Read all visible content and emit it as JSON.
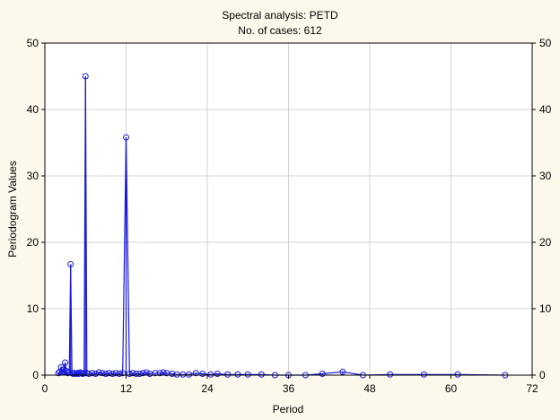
{
  "chart_data": {
    "type": "line",
    "title": "Spectral analysis: PETD",
    "subtitle": "No. of cases: 612",
    "xlabel": "Period",
    "ylabel": "Periodogram Values",
    "xlim": [
      0,
      72
    ],
    "ylim": [
      0,
      50
    ],
    "x_ticks": [
      0,
      12,
      24,
      36,
      48,
      60,
      72
    ],
    "y_ticks": [
      0,
      10,
      20,
      30,
      40,
      50
    ],
    "y_ticks_right": [
      0,
      10,
      20,
      30,
      40,
      50
    ],
    "grid": true,
    "colors": {
      "series": "#1a1adb",
      "background": "#fdf8ec",
      "plot": "#ffffff",
      "grid": "#d4d4d4"
    },
    "series": [
      {
        "x": [
          2.0,
          2.2,
          2.4,
          2.6,
          2.8,
          3.0,
          3.2,
          3.4,
          3.6,
          3.8,
          4.0,
          4.2,
          4.4,
          4.6,
          4.8,
          5.0,
          5.2,
          5.4,
          5.6,
          5.8,
          6.0,
          6.2,
          6.5,
          7.0,
          7.5,
          8.0,
          8.5,
          9.0,
          9.5,
          10.0,
          10.5,
          11.0,
          11.5,
          12.0,
          12.5,
          13.0,
          13.5,
          14.0,
          14.5,
          15.0,
          15.5,
          16.3,
          17.0,
          17.5,
          18.0,
          18.8,
          19.5,
          20.4,
          21.3,
          22.3,
          23.3,
          24.5,
          25.5,
          27.0,
          28.5,
          30.0,
          32.0,
          34.0,
          36.0,
          38.5,
          41.0,
          44.0,
          47.0,
          51.0,
          56.0,
          61.0,
          68.0
        ],
        "y": [
          0.3,
          0.5,
          1.2,
          0.4,
          0.8,
          1.9,
          0.6,
          0.3,
          0.4,
          16.7,
          0.3,
          0.2,
          0.3,
          0.2,
          0.3,
          0.2,
          0.4,
          0.3,
          0.2,
          0.3,
          45.0,
          0.3,
          0.2,
          0.3,
          0.2,
          0.4,
          0.3,
          0.2,
          0.3,
          0.2,
          0.3,
          0.2,
          0.3,
          35.8,
          0.2,
          0.3,
          0.2,
          0.2,
          0.3,
          0.4,
          0.2,
          0.3,
          0.3,
          0.4,
          0.3,
          0.2,
          0.1,
          0.1,
          0.1,
          0.3,
          0.2,
          0.1,
          0.2,
          0.1,
          0.1,
          0.1,
          0.1,
          0.0,
          0.0,
          0.0,
          0.2,
          0.5,
          0.0,
          0.1,
          0.1,
          0.1,
          0.0
        ]
      }
    ]
  }
}
